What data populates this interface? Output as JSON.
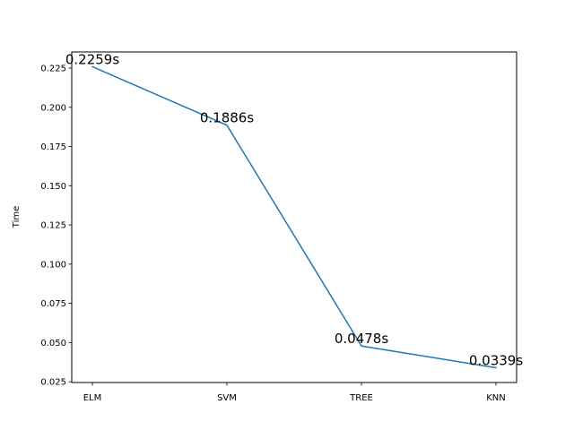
{
  "chart_data": {
    "type": "line",
    "categories": [
      "ELM",
      "SVM",
      "TREE",
      "KNN"
    ],
    "series": [
      {
        "values": [
          0.2259,
          0.1886,
          0.0478,
          0.0339
        ],
        "color": "#1f77b4"
      }
    ],
    "data_labels": [
      "0.2259s",
      "0.1886s",
      "0.0478s",
      "0.0339s"
    ],
    "ylabel": "Time",
    "ylim": [
      0.0245,
      0.2353
    ],
    "yticks": [
      0.025,
      0.05,
      0.075,
      0.1,
      0.125,
      0.15,
      0.175,
      0.2,
      0.225
    ],
    "ytick_labels": [
      "0.025",
      "0.050",
      "0.075",
      "0.100",
      "0.125",
      "0.150",
      "0.175",
      "0.200",
      "0.225"
    ],
    "grid": false,
    "legend": "none"
  }
}
